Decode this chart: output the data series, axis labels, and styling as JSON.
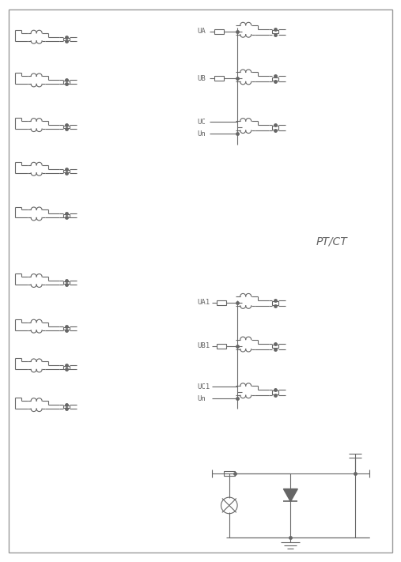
{
  "bg_color": "#ffffff",
  "line_color": "#666666",
  "lw": 0.8,
  "border_lw": 1.2,
  "pt_ct_label": "PT/CT",
  "ua_label": "UA",
  "ub_label": "UB",
  "uc_label": "UC",
  "un_label": "Un",
  "ua1_label": "UA1",
  "ub1_label": "UB1",
  "uc1_label": "UC1",
  "un2_label": "Un",
  "fig_w": 5.07,
  "fig_h": 7.11,
  "dpi": 100
}
